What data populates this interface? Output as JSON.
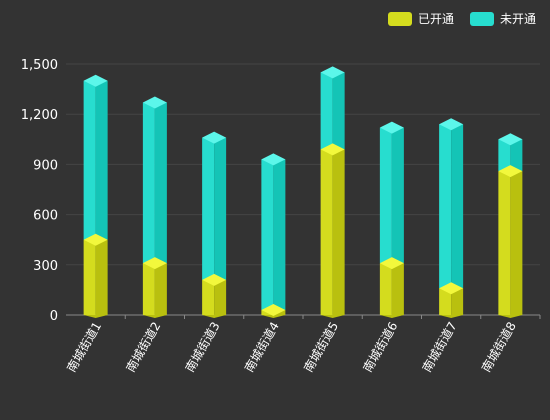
{
  "legend": {
    "opened_label": "已开通",
    "unopened_label": "未开通"
  },
  "colors": {
    "background": "#333333",
    "opened_front": "#d4dc1e",
    "opened_side": "#b9c00f",
    "opened_top": "#f2f83c",
    "unopened_front": "#27ddcf",
    "unopened_side": "#14c4b6",
    "unopened_top": "#5cf6ea",
    "grid": "#444444",
    "axis": "#888888",
    "text": "#ffffff"
  },
  "chart_data": {
    "type": "bar",
    "stacked": true,
    "style": "3d-cylinder-stack",
    "categories": [
      "南城街道1",
      "南城街道2",
      "南城街道3",
      "南城街道4",
      "南城街道5",
      "南城街道6",
      "南城街道7",
      "南城街道8"
    ],
    "series": [
      {
        "name": "已开通",
        "values": [
          450,
          310,
          210,
          30,
          990,
          310,
          160,
          860
        ]
      },
      {
        "name": "未开通",
        "values": [
          950,
          960,
          850,
          900,
          460,
          810,
          980,
          190
        ]
      }
    ],
    "yticks": [
      "0",
      "300",
      "600",
      "900",
      "1,200",
      "1,500"
    ],
    "ylim": [
      0,
      1500
    ],
    "grid": true,
    "legend_position": "top-right",
    "xlabel": "",
    "ylabel": ""
  }
}
